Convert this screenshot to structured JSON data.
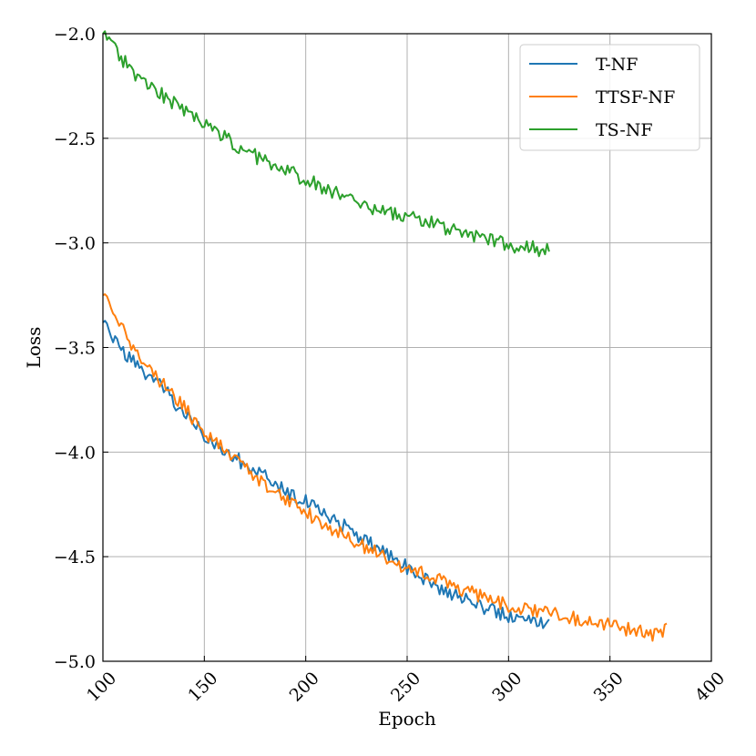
{
  "chart_data": {
    "type": "line",
    "title": "",
    "xlabel": "Epoch",
    "ylabel": "Loss",
    "xlim": [
      100,
      400
    ],
    "ylim": [
      -5.0,
      -2.0
    ],
    "xticks": [
      100,
      150,
      200,
      250,
      300,
      350,
      400
    ],
    "yticks": [
      -2.0,
      -2.5,
      -3.0,
      -3.5,
      -4.0,
      -4.5,
      -5.0
    ],
    "xtick_labels": [
      "100",
      "150",
      "200",
      "250",
      "300",
      "350",
      "400"
    ],
    "ytick_labels": [
      "−2.0",
      "−2.5",
      "−3.0",
      "−3.5",
      "−4.0",
      "−4.5",
      "−5.0"
    ],
    "grid": true,
    "legend_position": "top-right",
    "series": [
      {
        "name": "T-NF",
        "color": "#1f77b4",
        "x": [
          100,
          110,
          120,
          130,
          140,
          150,
          160,
          170,
          180,
          190,
          200,
          210,
          220,
          230,
          240,
          250,
          260,
          270,
          280,
          290,
          300,
          310,
          320
        ],
        "y": [
          -3.38,
          -3.52,
          -3.62,
          -3.7,
          -3.82,
          -3.92,
          -3.99,
          -4.06,
          -4.12,
          -4.18,
          -4.24,
          -4.3,
          -4.36,
          -4.43,
          -4.49,
          -4.55,
          -4.61,
          -4.67,
          -4.71,
          -4.75,
          -4.78,
          -4.8,
          -4.81
        ]
      },
      {
        "name": "TTSF-NF",
        "color": "#ff7f0e",
        "x": [
          100,
          110,
          120,
          130,
          140,
          150,
          160,
          170,
          180,
          190,
          200,
          210,
          220,
          230,
          240,
          250,
          260,
          270,
          280,
          290,
          300,
          310,
          320,
          330,
          340,
          350,
          360,
          370,
          378
        ],
        "y": [
          -3.25,
          -3.42,
          -3.57,
          -3.68,
          -3.79,
          -3.9,
          -3.99,
          -4.07,
          -4.15,
          -4.22,
          -4.29,
          -4.35,
          -4.41,
          -4.46,
          -4.51,
          -4.55,
          -4.59,
          -4.63,
          -4.67,
          -4.7,
          -4.73,
          -4.75,
          -4.77,
          -4.79,
          -4.81,
          -4.83,
          -4.85,
          -4.87,
          -4.85
        ]
      },
      {
        "name": "TS-NF",
        "color": "#2ca02c",
        "x": [
          100,
          110,
          120,
          130,
          140,
          150,
          160,
          170,
          180,
          190,
          200,
          210,
          220,
          230,
          240,
          250,
          260,
          270,
          280,
          290,
          300,
          310,
          320
        ],
        "y": [
          -2.0,
          -2.13,
          -2.23,
          -2.3,
          -2.37,
          -2.43,
          -2.49,
          -2.56,
          -2.61,
          -2.65,
          -2.7,
          -2.74,
          -2.78,
          -2.82,
          -2.85,
          -2.87,
          -2.9,
          -2.93,
          -2.96,
          -2.98,
          -3.01,
          -3.02,
          -3.04
        ]
      }
    ]
  }
}
